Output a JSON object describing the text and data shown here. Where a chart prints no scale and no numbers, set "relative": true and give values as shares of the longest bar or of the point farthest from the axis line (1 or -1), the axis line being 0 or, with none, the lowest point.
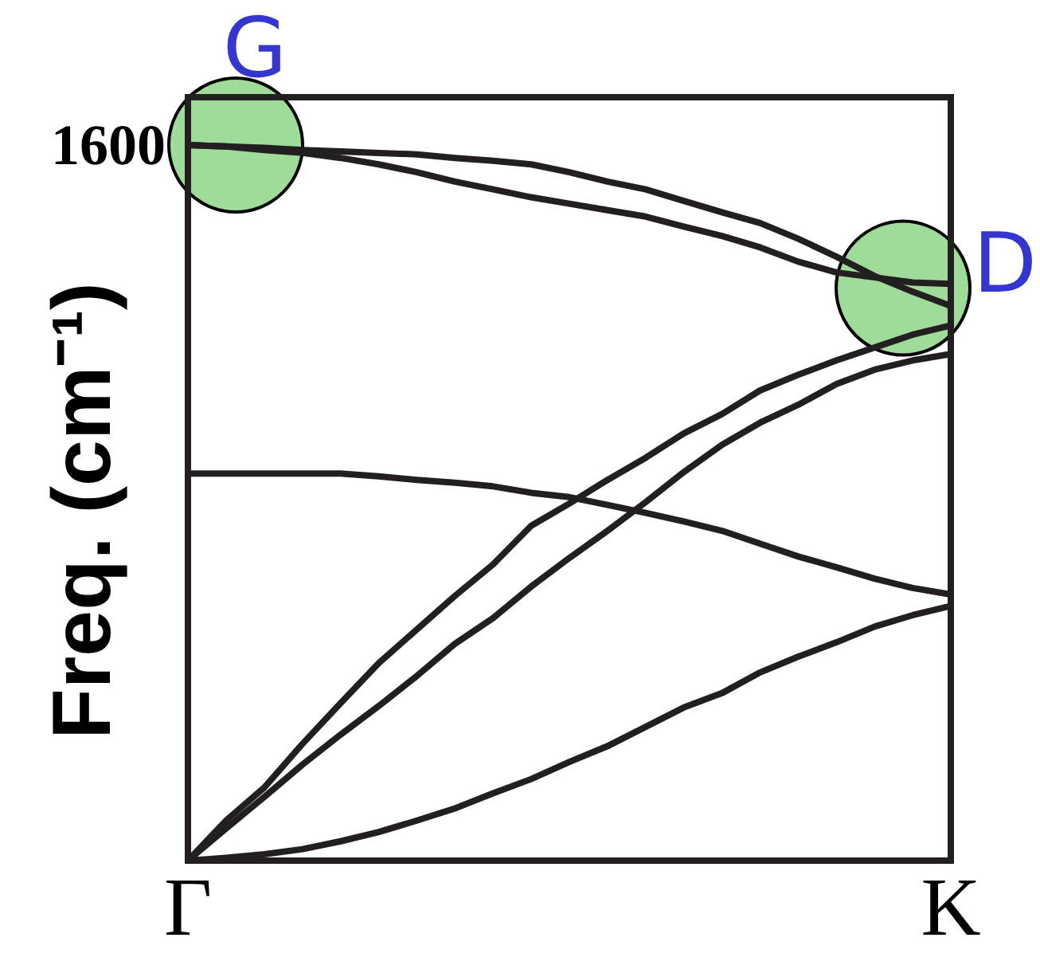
{
  "chart_data": {
    "type": "line",
    "relative": true,
    "ylabel": "Freq. (cm⁻¹)",
    "categories": [
      "Γ",
      null,
      null,
      null,
      null,
      null,
      null,
      null,
      null,
      null,
      null,
      null,
      null,
      null,
      null,
      null,
      null,
      null,
      null,
      null,
      "K"
    ],
    "series": [
      {
        "color": "#231f20",
        "values": [
          1,
          0.998,
          0.996,
          0.993,
          0.991,
          0.989,
          0.987,
          0.982,
          0.978,
          0.973,
          0.962,
          0.949,
          0.938,
          0.922,
          0.906,
          0.891,
          0.869,
          0.844,
          0.817,
          0.795,
          0.775
        ]
      },
      {
        "color": "#231f20",
        "values": [
          1,
          0.998,
          0.993,
          0.989,
          0.982,
          0.973,
          0.962,
          0.949,
          0.938,
          0.927,
          0.918,
          0.909,
          0.9,
          0.886,
          0.873,
          0.857,
          0.837,
          0.822,
          0.815,
          0.808,
          0.806
        ]
      },
      {
        "color": "#231f20",
        "values": [
          0.541,
          0.541,
          0.541,
          0.541,
          0.541,
          0.537,
          0.532,
          0.528,
          0.523,
          0.514,
          0.508,
          0.497,
          0.486,
          0.474,
          0.461,
          0.443,
          0.425,
          0.41,
          0.394,
          0.381,
          0.372
        ]
      },
      {
        "color": "#231f20",
        "values": [
          0,
          0.056,
          0.102,
          0.163,
          0.22,
          0.276,
          0.323,
          0.37,
          0.414,
          0.468,
          0.499,
          0.532,
          0.563,
          0.597,
          0.624,
          0.657,
          0.679,
          0.699,
          0.717,
          0.735,
          0.748
        ]
      },
      {
        "color": "#231f20",
        "values": [
          0,
          0.045,
          0.089,
          0.134,
          0.176,
          0.216,
          0.258,
          0.303,
          0.339,
          0.383,
          0.423,
          0.461,
          0.501,
          0.543,
          0.581,
          0.612,
          0.637,
          0.666,
          0.686,
          0.699,
          0.708
        ]
      },
      {
        "color": "#231f20",
        "values": [
          0,
          0.004,
          0.009,
          0.016,
          0.027,
          0.04,
          0.056,
          0.073,
          0.094,
          0.114,
          0.138,
          0.16,
          0.187,
          0.214,
          0.234,
          0.263,
          0.285,
          0.305,
          0.327,
          0.343,
          0.356
        ]
      }
    ],
    "annotations": [
      "1600",
      {
        "text": "G",
        "x": "Γ",
        "y": 1
      },
      {
        "text": "D",
        "x": "K",
        "y": 0.8
      }
    ],
    "line_style": "solid"
  }
}
